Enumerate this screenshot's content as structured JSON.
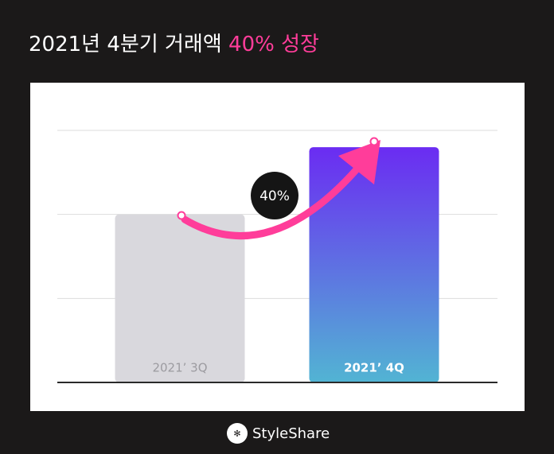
{
  "chart_data": {
    "type": "bar",
    "title": "2021년 4분기 거래액",
    "title_highlight": "40% 성장",
    "categories": [
      "2021’ 3Q",
      "2021’ 4Q"
    ],
    "values": [
      2,
      2.8
    ],
    "colors": [
      "#d9d8dd",
      "#6b2cf2"
    ],
    "ylim": [
      0,
      3
    ],
    "yticks": [
      0,
      1,
      2,
      3
    ],
    "grid": true,
    "annotation": "40%",
    "brand": "StyleShare"
  }
}
